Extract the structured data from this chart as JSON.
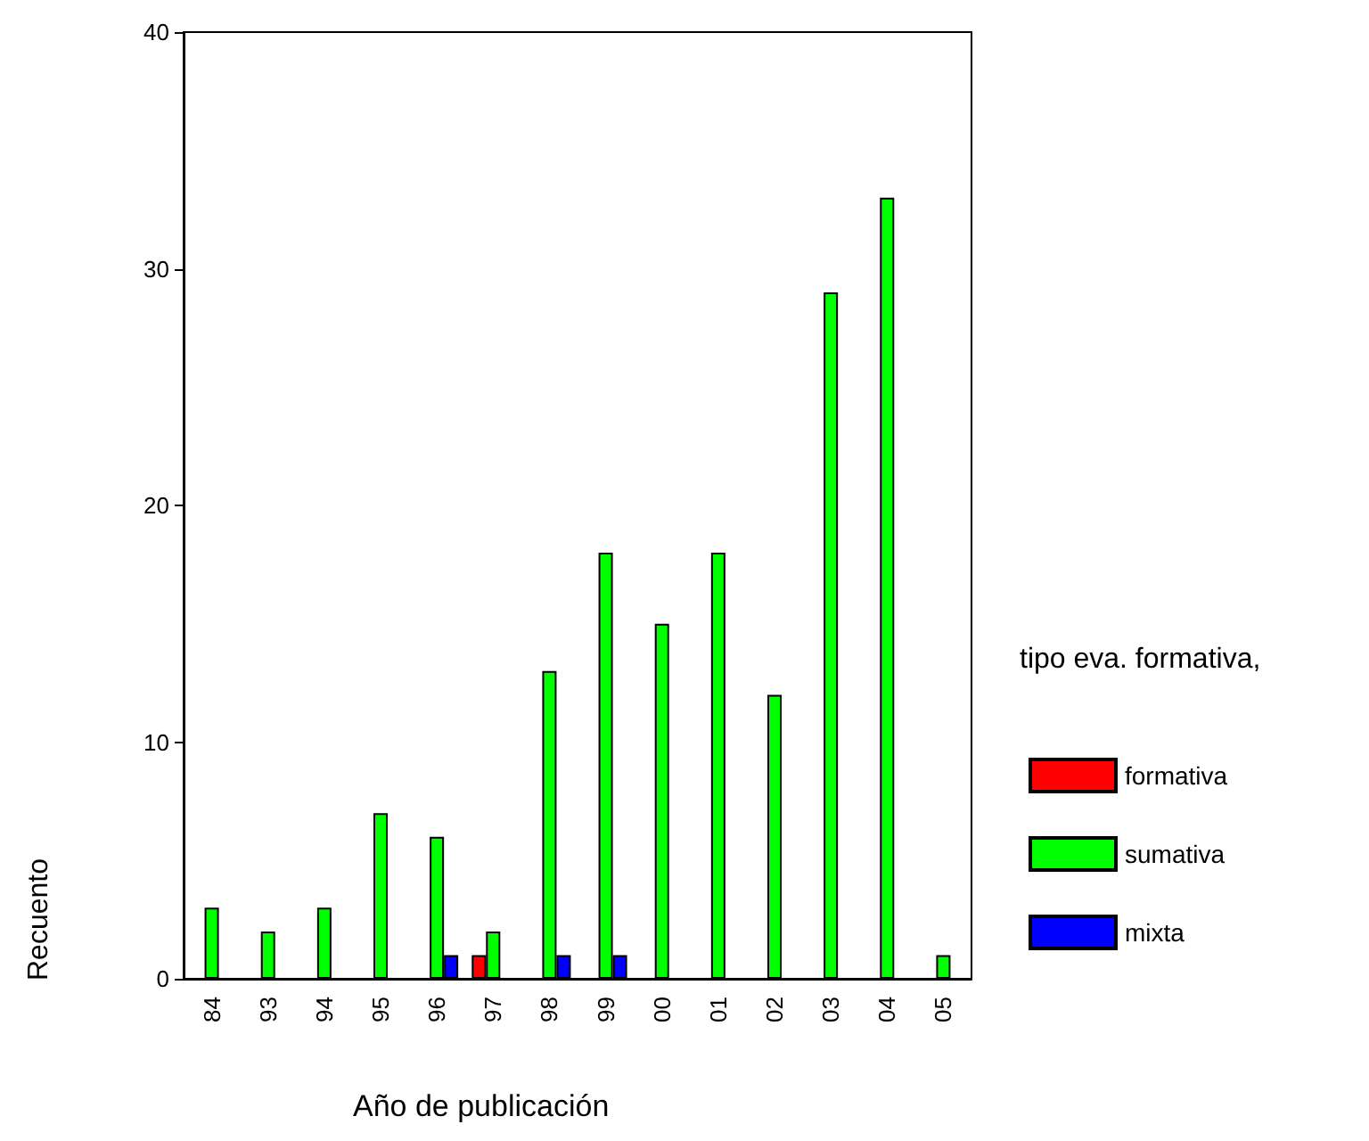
{
  "chart_data": {
    "type": "bar",
    "xlabel": "Año de publicación",
    "ylabel": "Recuento",
    "legend_title": "tipo eva. formativa,",
    "categories": [
      "84",
      "93",
      "94",
      "95",
      "96",
      "97",
      "98",
      "99",
      "00",
      "01",
      "02",
      "03",
      "04",
      "05"
    ],
    "series": [
      {
        "name": "formativa",
        "color": "#ff0000",
        "values": [
          null,
          null,
          null,
          null,
          null,
          1,
          null,
          null,
          null,
          null,
          null,
          null,
          null,
          null
        ]
      },
      {
        "name": "sumativa",
        "color": "#00ff00",
        "values": [
          3,
          2,
          3,
          7,
          6,
          2,
          13,
          18,
          15,
          18,
          12,
          29,
          33,
          1
        ]
      },
      {
        "name": "mixta",
        "color": "#0000ff",
        "values": [
          null,
          null,
          null,
          null,
          1,
          null,
          1,
          1,
          null,
          null,
          null,
          null,
          null,
          null
        ]
      }
    ],
    "ylim": [
      0,
      40
    ],
    "yticks": [
      0,
      10,
      20,
      30,
      40
    ],
    "grid": false,
    "legend": "right"
  }
}
